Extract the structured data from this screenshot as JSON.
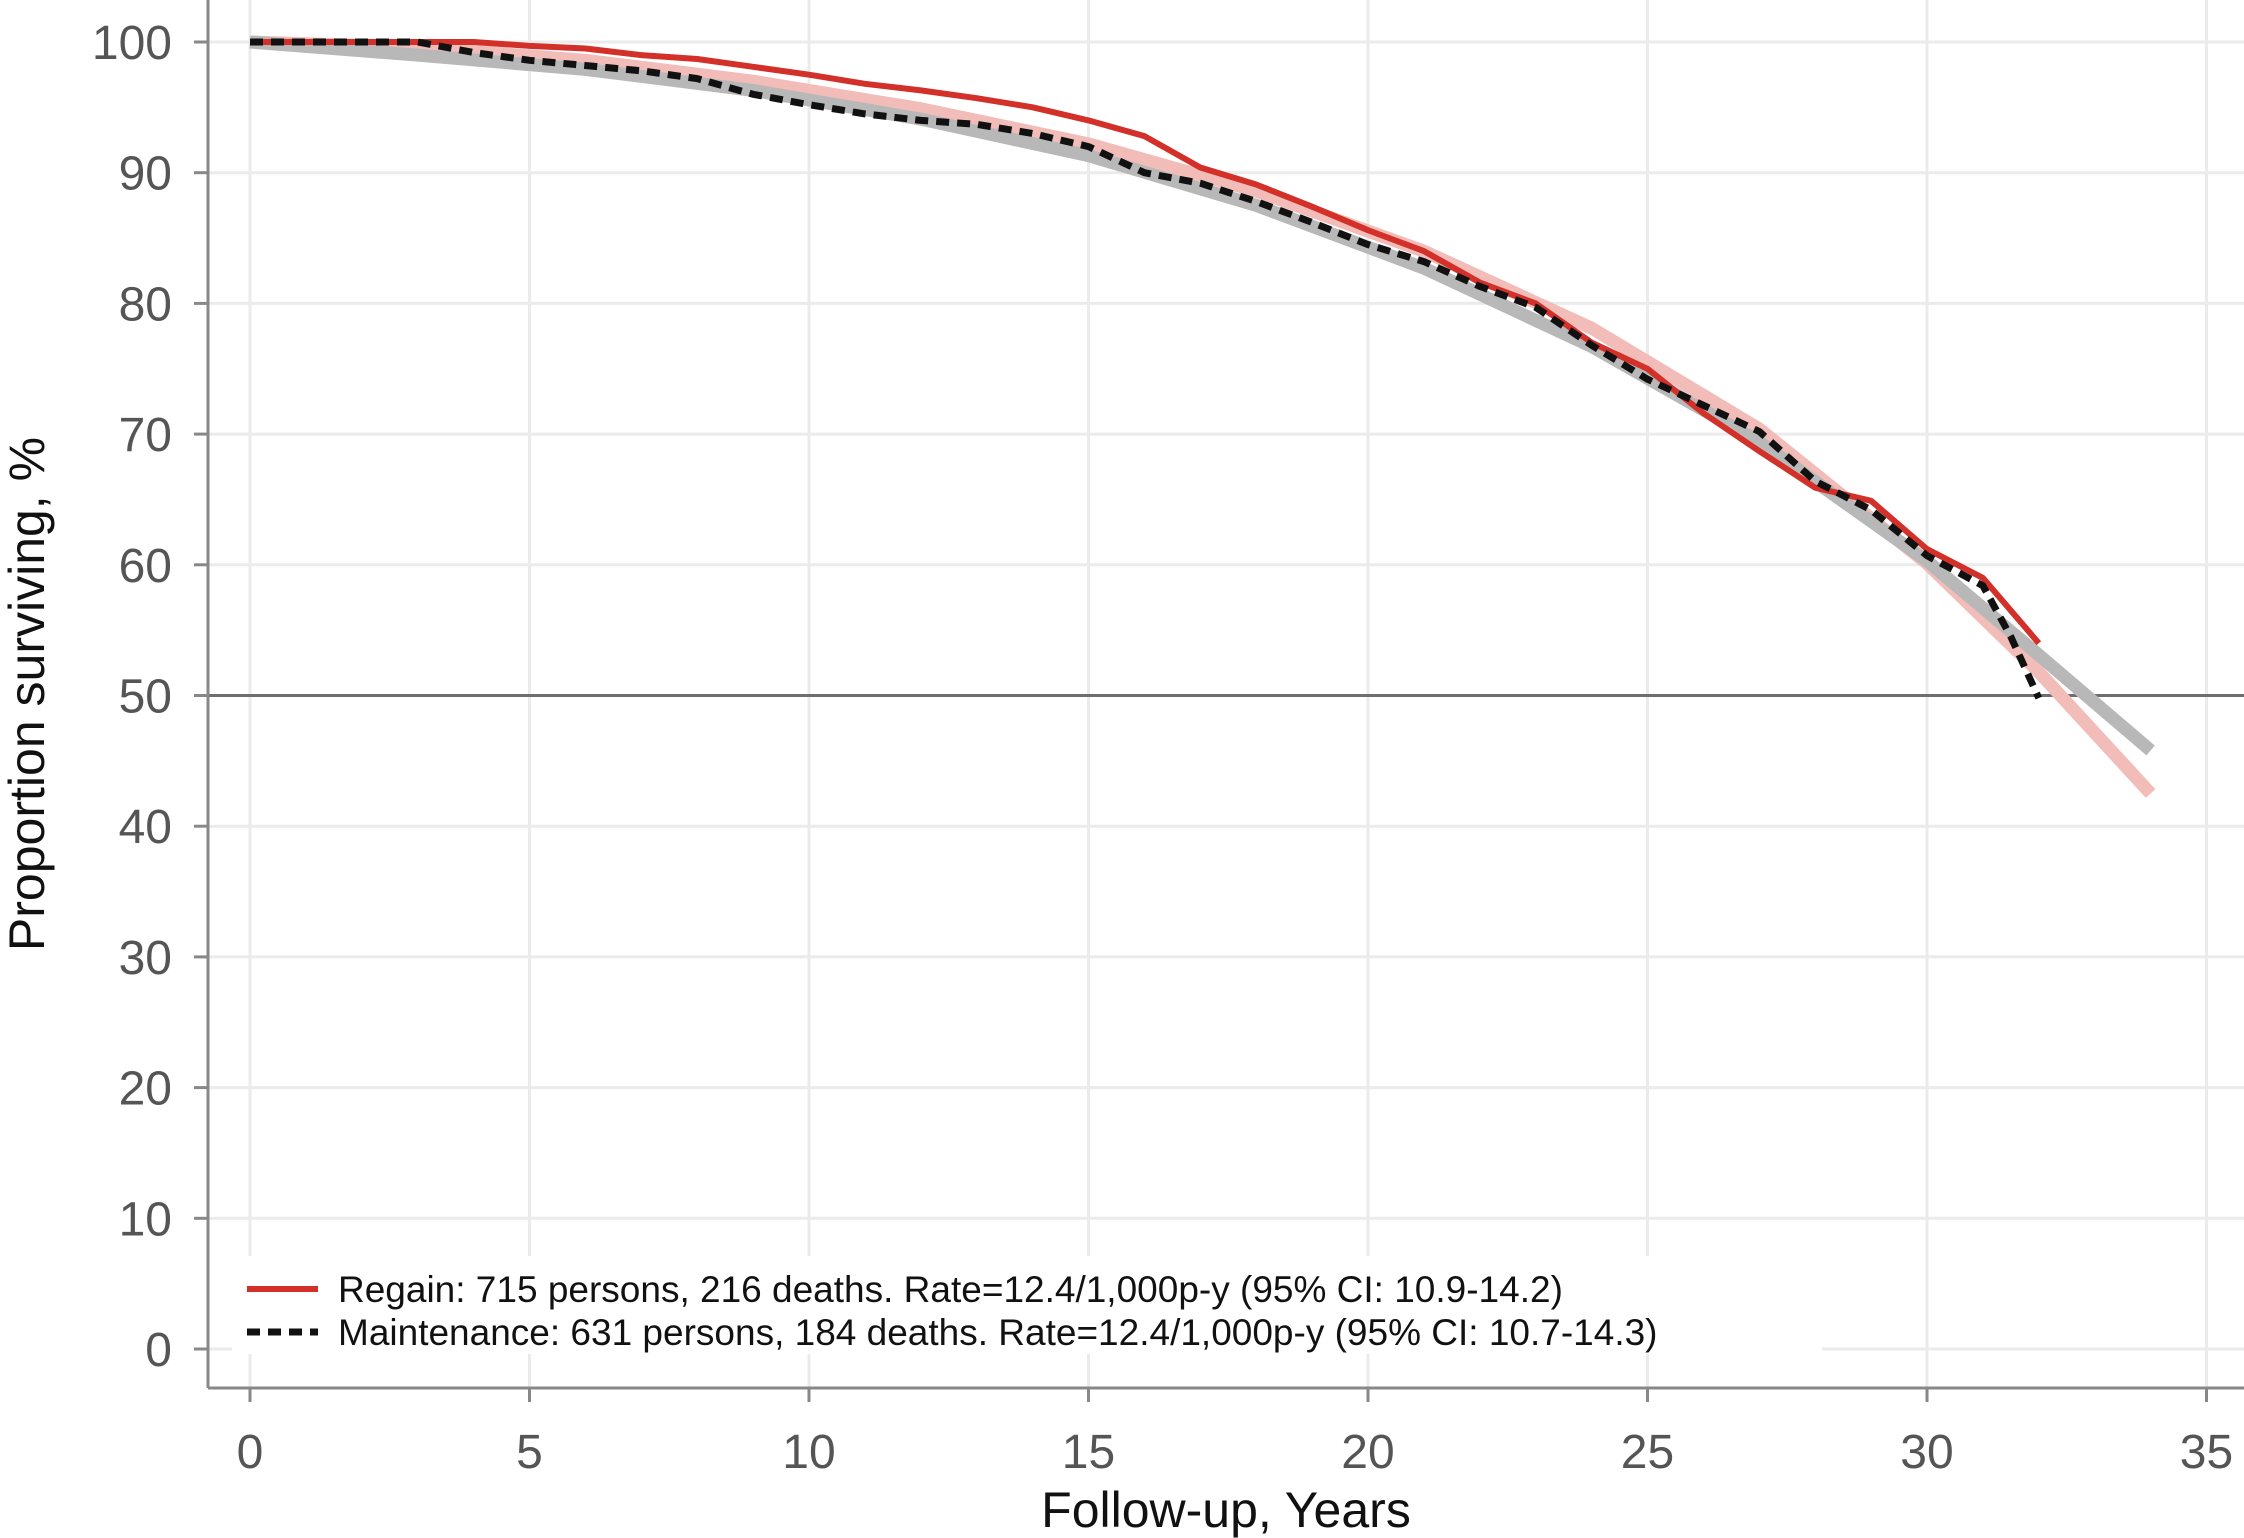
{
  "chart_data": {
    "type": "line",
    "xlabel": "Follow-up, Years",
    "ylabel": "Proportion surviving, %",
    "xlim": [
      -0.7,
      35.5
    ],
    "ylim": [
      -3,
      103
    ],
    "x_ticks": [
      0,
      5,
      10,
      15,
      20,
      25,
      30,
      35
    ],
    "y_ticks": [
      0,
      10,
      20,
      30,
      40,
      50,
      60,
      70,
      80,
      90,
      100
    ],
    "grid": true,
    "reference_line_y": 50,
    "legend_position": "bottom-left",
    "series": [
      {
        "name": "Regain: 715 persons, 216 deaths. Rate=12.4/1,000p-y (95% CI: 10.9-14.2)",
        "style": "solid",
        "color": "#d3302a",
        "x": [
          0,
          1,
          2,
          3,
          4,
          5,
          6,
          7,
          8,
          9,
          10,
          11,
          12,
          13,
          14,
          15,
          16,
          17,
          18,
          19,
          20,
          21,
          22,
          23,
          24,
          25,
          26,
          27,
          28,
          29,
          30,
          31,
          32
        ],
        "y": [
          100,
          100,
          100,
          100,
          100,
          99.7,
          99.5,
          99,
          98.7,
          98.1,
          97.5,
          96.8,
          96.3,
          95.7,
          95,
          94,
          92.8,
          90.4,
          89.1,
          87.4,
          85.6,
          84,
          81.6,
          80,
          77,
          75,
          71.6,
          68.7,
          65.9,
          64.9,
          61.2,
          59,
          54
        ]
      },
      {
        "name": "Maintenance: 631 persons, 184 deaths. Rate=12.4/1,000p-y (95% CI: 10.7-14.3)",
        "style": "dashed",
        "color": "#111111",
        "x": [
          0,
          1,
          2,
          3,
          4,
          5,
          6,
          7,
          8,
          9,
          10,
          11,
          12,
          13,
          14,
          15,
          16,
          17,
          18,
          19,
          20,
          21,
          22,
          23,
          24,
          25,
          26,
          27,
          28,
          29,
          30,
          31,
          31.5,
          32
        ],
        "y": [
          100,
          100,
          100,
          100,
          99.2,
          98.6,
          98.2,
          97.8,
          97.2,
          96,
          95.2,
          94.5,
          94,
          93.7,
          93,
          92,
          90,
          89.2,
          87.8,
          86.2,
          84.5,
          83.2,
          81.3,
          79.7,
          76.8,
          74.2,
          72.2,
          70.2,
          66.4,
          64.2,
          60.7,
          58.4,
          54.5,
          49.8
        ]
      },
      {
        "role": "fitted",
        "style": "thick",
        "color": "#f2bcb8",
        "x": [
          0,
          3,
          6,
          9,
          12,
          15,
          18,
          21,
          24,
          27,
          30,
          32,
          34
        ],
        "y": [
          100,
          99.6,
          98.6,
          97,
          94.9,
          92.2,
          88.6,
          84,
          78.1,
          70.4,
          60.1,
          51.8,
          42.5
        ]
      },
      {
        "role": "fitted",
        "style": "thick",
        "color": "#b8b8b8",
        "x": [
          0,
          3,
          6,
          9,
          12,
          15,
          18,
          21,
          24,
          27,
          30,
          32,
          34
        ],
        "y": [
          100,
          99,
          97.9,
          96.3,
          94.1,
          91.3,
          87.5,
          82.7,
          76.7,
          69.4,
          60.3,
          53.1,
          45.8
        ]
      }
    ]
  }
}
